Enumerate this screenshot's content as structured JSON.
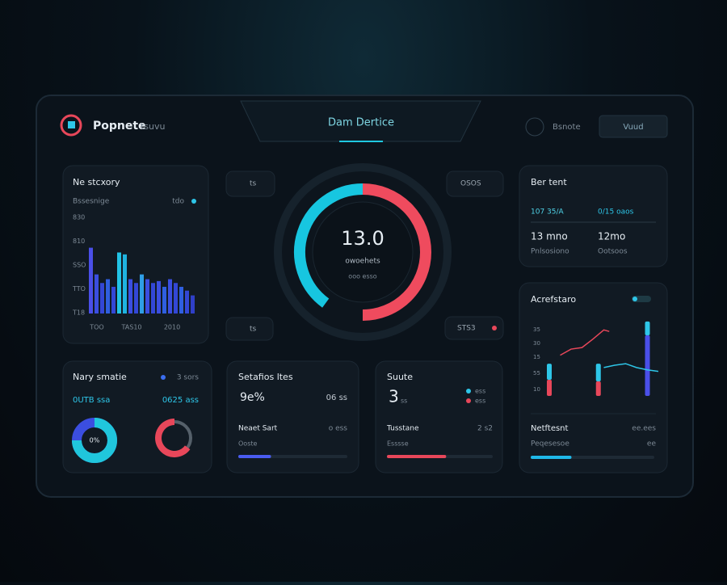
{
  "header": {
    "brand": "Popnete",
    "brand_sub": "tsuvu",
    "tab": "Dam Dertice",
    "user": "Bsnote",
    "button": "Vuud"
  },
  "activity": {
    "title": "Ne stcxory",
    "subtitle": "Bssesnige",
    "legend": "tdo",
    "y_labels": [
      "830",
      "810",
      "SSO",
      "TTO",
      "T18"
    ],
    "x_labels": [
      "TOO",
      "TAS10",
      "2010"
    ],
    "ylim": [
      0,
      100
    ],
    "values": [
      69,
      41,
      32,
      36,
      28,
      64,
      62,
      36,
      32,
      41,
      36,
      32,
      34,
      28,
      36,
      32,
      28,
      24,
      19
    ],
    "colors": [
      "#4a4fe8",
      "#3b4ee0",
      "#3347d6",
      "#2f5fe0",
      "#3347d6",
      "#22c3e6",
      "#1fb3e0",
      "#3b4ee0",
      "#3347d6",
      "#2f9ee6",
      "#3b4ee0",
      "#3347d6",
      "#3b4ee0",
      "#2f5fe0",
      "#3b4ee0",
      "#3347d6",
      "#2f5fe0",
      "#3347d6",
      "#2f3fc8"
    ]
  },
  "chips": [
    "ts",
    "OSOS",
    "ts",
    "STS3"
  ],
  "gauge": {
    "value": "13.0",
    "label": "owoehets",
    "sub": "ooo esso",
    "arcs": [
      {
        "color": "#ef4b5e",
        "share": 50
      },
      {
        "color": "#17c6e0",
        "share": 40
      }
    ]
  },
  "stats": {
    "title": "Ber tent",
    "rows": [
      [
        "107 35/A",
        "0/15 oaos"
      ],
      [
        "13 mno",
        "12mo"
      ],
      [
        "Pnlsosiono",
        "Ootsoos"
      ]
    ]
  },
  "trend": {
    "title": "Acrefstaro",
    "y_labels": [
      "35",
      "30",
      "15",
      "55",
      "10"
    ],
    "ylim": [
      0,
      100
    ],
    "xlim": [
      0,
      10
    ],
    "lines": [
      {
        "color": "#e8475a",
        "x": [
          1,
          2,
          3,
          4,
          5,
          5.5
        ],
        "values": [
          53,
          61,
          63,
          74,
          86,
          84
        ]
      },
      {
        "color": "#2ec6e8",
        "x": [
          5,
          6,
          7,
          8,
          9,
          10
        ],
        "values": [
          37,
          40,
          42,
          37,
          34,
          32
        ]
      }
    ],
    "bars": [
      {
        "x": 0,
        "segments": [
          {
            "color": "#e8475a",
            "value": 21
          },
          {
            "color": "#2ec6e8",
            "value": 21
          }
        ]
      },
      {
        "x": 4.5,
        "segments": [
          {
            "color": "#e8475a",
            "value": 19
          },
          {
            "color": "#2ec6e8",
            "value": 23
          }
        ]
      },
      {
        "x": 9,
        "segments": [
          {
            "color": "#4a4fe8",
            "value": 79
          },
          {
            "color": "#2ec6e8",
            "value": 18
          }
        ]
      }
    ],
    "footer": {
      "label": "Netftesnt",
      "value": "ee.ees",
      "sub": "Peqesesoe",
      "sub_value": "ee",
      "progress": 33,
      "color": "#1fb8e8"
    }
  },
  "summary": {
    "title": "Nary smatie",
    "legend": "3 sors",
    "left": "0UTB ssa",
    "right": "0625 ass",
    "donut": 75,
    "donut_label": "0%",
    "gauge": 65
  },
  "cards": [
    {
      "title": "Setafios ltes",
      "big": "9e%",
      "side": "06 ss",
      "row": "Neaet Sart",
      "row_value": "o ess",
      "sub": "Ooste",
      "progress": 30,
      "color": "#4a5cf0"
    },
    {
      "title": "Suute",
      "big": 3,
      "big_unit": "ss",
      "legend": [
        "ess",
        "ess"
      ],
      "row": "Tusstane",
      "row_value": "2 s2",
      "sub": "Esssse",
      "progress": 56,
      "color": "#e8475a"
    }
  ]
}
